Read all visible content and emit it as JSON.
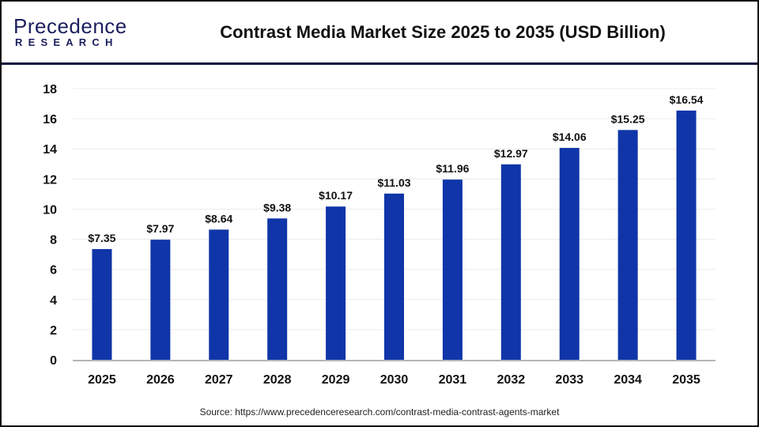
{
  "logo": {
    "text_top": "Precedence",
    "text_bottom": "RESEARCH"
  },
  "title": "Contrast Media Market Size 2025 to 2035 (USD Billion)",
  "source": "Source: https://www.precedenceresearch.com/contrast-media-contrast-agents-market",
  "colors": {
    "bar": "#0f35a8",
    "header_line": "#0d1540"
  },
  "chart_data": {
    "type": "bar",
    "title": "Contrast Media Market Size 2025 to 2035 (USD Billion)",
    "categories": [
      "2025",
      "2026",
      "2027",
      "2028",
      "2029",
      "2030",
      "2031",
      "2032",
      "2033",
      "2034",
      "2035"
    ],
    "values": [
      7.35,
      7.97,
      8.64,
      9.38,
      10.17,
      11.03,
      11.96,
      12.97,
      14.06,
      15.25,
      16.54
    ],
    "data_labels": [
      "$7.35",
      "$7.97",
      "$8.64",
      "$9.38",
      "$10.17",
      "$11.03",
      "$11.96",
      "$12.97",
      "$14.06",
      "$15.25",
      "$16.54"
    ],
    "yticks": [
      0,
      2,
      4,
      6,
      8,
      10,
      12,
      14,
      16,
      18
    ],
    "ylim": [
      0,
      18
    ],
    "xlabel": "",
    "ylabel": "",
    "grid": true,
    "legend": "none"
  }
}
